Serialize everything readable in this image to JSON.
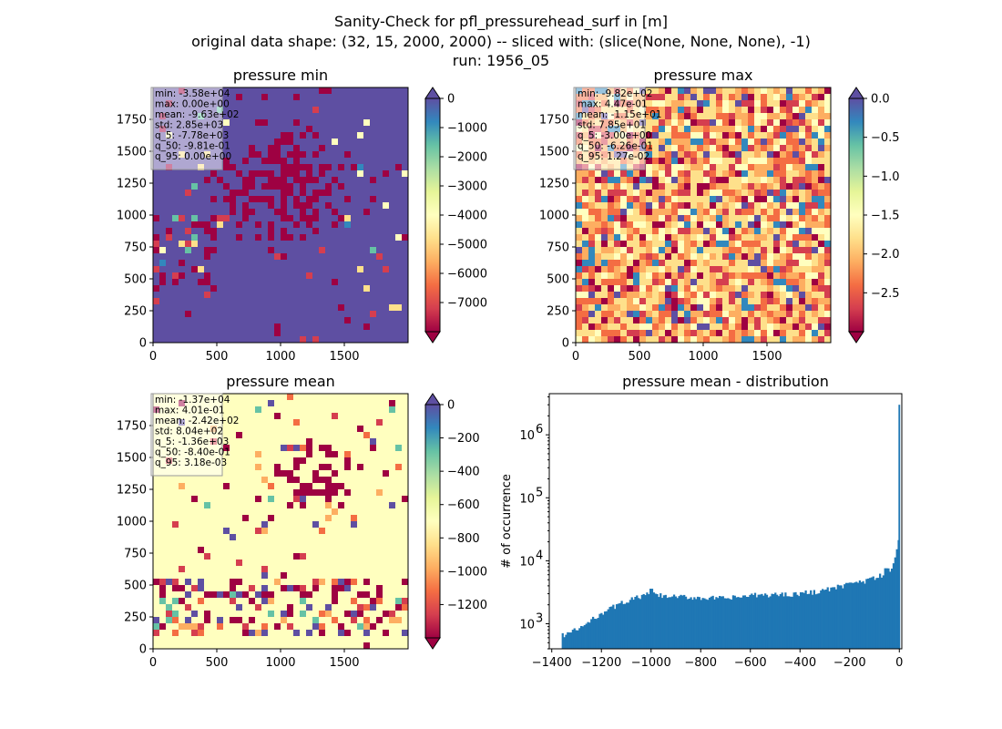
{
  "figure": {
    "title_lines": [
      "Sanity-Check for pfl_pressurehead_surf in [m]",
      "original data shape: (32, 15, 2000, 2000) -- sliced with: (slice(None, None, None), -1)",
      "run: 1956_05"
    ]
  },
  "colors": {
    "colormap": "Spectral",
    "cmap_stops": [
      "#9e0142",
      "#d53e4f",
      "#f46d43",
      "#fdae61",
      "#fee08b",
      "#ffffbf",
      "#e6f598",
      "#abdda4",
      "#66c2a5",
      "#3288bd",
      "#5e4fa2"
    ],
    "over_color": "#5e4fa2",
    "under_color": "#9e0142",
    "hist_bar": "#1f77b4"
  },
  "chart_data": [
    {
      "type": "heatmap",
      "title": "pressure min",
      "xlim": [
        0,
        2000
      ],
      "ylim": [
        0,
        2000
      ],
      "x_ticks": [
        0,
        500,
        1000,
        1500
      ],
      "y_ticks": [
        0,
        250,
        500,
        750,
        1000,
        1250,
        1500,
        1750
      ],
      "colorbar": {
        "min": -8000,
        "max": 0,
        "ticks": [
          0,
          -1000,
          -2000,
          -3000,
          -4000,
          -5000,
          -6000,
          -7000
        ],
        "tick_labels": [
          "0",
          "−1000",
          "−2000",
          "−3000",
          "−4000",
          "−5000",
          "−6000",
          "−7000"
        ],
        "extend_top": true,
        "extend_bottom": true
      },
      "dominant": "top",
      "stats": [
        "min: -3.58e+04",
        "max: 0.00e+00",
        "mean: -9.63e+02",
        "std: 2.85e+03",
        "q_5: -7.78e+03",
        "q_50: -9.81e-01",
        "q_95: 0.00e+00"
      ]
    },
    {
      "type": "heatmap",
      "title": "pressure max",
      "xlim": [
        0,
        2000
      ],
      "ylim": [
        0,
        2000
      ],
      "x_ticks": [
        0,
        500,
        1000,
        1500
      ],
      "y_ticks": [
        0,
        250,
        500,
        750,
        1000,
        1250,
        1500,
        1750
      ],
      "colorbar": {
        "min": -3.0,
        "max": 0.0,
        "ticks": [
          0.0,
          -0.5,
          -1.0,
          -1.5,
          -2.0,
          -2.5
        ],
        "tick_labels": [
          "0.0",
          "−0.5",
          "−1.0",
          "−1.5",
          "−2.0",
          "−2.5"
        ],
        "extend_top": true,
        "extend_bottom": true
      },
      "dominant": "mixed",
      "stats": [
        "min: -9.82e+02",
        "max: 4.47e-01",
        "mean: -1.15e+01",
        "std: 7.85e+01",
        "q_5: -3.00e+00",
        "q_50: -6.26e-01",
        "q_95: 1.27e-02"
      ]
    },
    {
      "type": "heatmap",
      "title": "pressure mean",
      "xlim": [
        0,
        2000
      ],
      "ylim": [
        0,
        2000
      ],
      "x_ticks": [
        0,
        500,
        1000,
        1500
      ],
      "y_ticks": [
        0,
        250,
        500,
        750,
        1000,
        1250,
        1500,
        1750
      ],
      "colorbar": {
        "min": -1400,
        "max": 0,
        "ticks": [
          0,
          -200,
          -400,
          -600,
          -800,
          -1000,
          -1200
        ],
        "tick_labels": [
          "0",
          "−200",
          "−400",
          "−600",
          "−800",
          "−1000",
          "−1200"
        ],
        "extend_top": true,
        "extend_bottom": true
      },
      "dominant": "center",
      "stats": [
        "min: -1.37e+04",
        "max: 4.01e-01",
        "mean: -2.42e+02",
        "std: 8.04e+02",
        "q_5: -1.36e+03",
        "q_50: -8.40e-01",
        "q_95: 3.18e-03"
      ]
    },
    {
      "type": "bar",
      "title": "pressure mean - distribution",
      "ylabel": "# of occurrence",
      "xlabel": "",
      "yscale": "log",
      "xlim": [
        -1410,
        10
      ],
      "ylim": [
        400,
        4500000
      ],
      "x_ticks": [
        -1400,
        -1200,
        -1000,
        -800,
        -600,
        -400,
        -200,
        0
      ],
      "x_tick_labels": [
        "−1400",
        "−1200",
        "−1000",
        "−800",
        "−600",
        "−400",
        "−200",
        "0"
      ],
      "y_ticks": [
        1000,
        10000,
        100000,
        1000000
      ],
      "y_tick_labels": [
        [
          "10",
          "3"
        ],
        [
          "10",
          "4"
        ],
        [
          "10",
          "5"
        ],
        [
          "10",
          "6"
        ]
      ],
      "bins": {
        "start": -1360,
        "width": 6.8,
        "profile": [
          [
            -1360,
            650
          ],
          [
            -1300,
            800
          ],
          [
            -1250,
            1050
          ],
          [
            -1200,
            1500
          ],
          [
            -1100,
            2300
          ],
          [
            -1000,
            3000
          ],
          [
            -950,
            2700
          ],
          [
            -800,
            2600
          ],
          [
            -700,
            2500
          ],
          [
            -600,
            2800
          ],
          [
            -500,
            2900
          ],
          [
            -400,
            3000
          ],
          [
            -300,
            3400
          ],
          [
            -200,
            4200
          ],
          [
            -100,
            5200
          ],
          [
            -50,
            6500
          ],
          [
            -30,
            8000
          ],
          [
            -15,
            12000
          ],
          [
            -8,
            17000
          ],
          [
            -3,
            22000
          ]
        ],
        "spikes": [
          [
            -1000,
            3600
          ],
          [
            -200,
            4500
          ],
          [
            -60,
            7600
          ]
        ],
        "last": {
          "x": -3.4,
          "value": 3000000
        }
      }
    }
  ]
}
